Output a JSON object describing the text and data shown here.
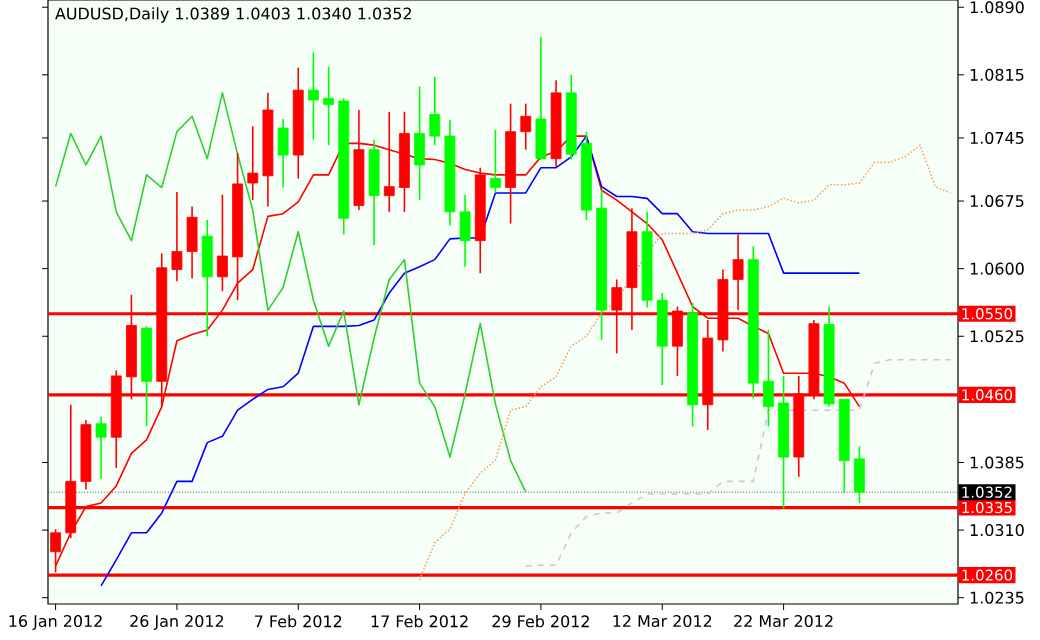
{
  "chart_data": {
    "type": "candlestick",
    "title": "AUDUSD,Daily  1.0389 1.0403 1.0340 1.0352",
    "categories": [
      "16 Jan 2012",
      null,
      null,
      null,
      null,
      null,
      null,
      null,
      "26 Jan 2012",
      null,
      null,
      null,
      null,
      null,
      null,
      null,
      "7 Feb 2012",
      null,
      null,
      null,
      null,
      null,
      null,
      null,
      "17 Feb 2012",
      null,
      null,
      null,
      null,
      null,
      null,
      null,
      "29 Feb 2012",
      null,
      null,
      null,
      null,
      null,
      null,
      null,
      "12 Mar 2012",
      null,
      null,
      null,
      null,
      null,
      null,
      null,
      "22 Mar 2012",
      null,
      null,
      null,
      null,
      null,
      null,
      null,
      null,
      null,
      null,
      null
    ],
    "ohlc": [
      [
        1.0286,
        1.0311,
        1.0263,
        1.0307
      ],
      [
        1.0307,
        1.0449,
        1.0301,
        1.0364
      ],
      [
        1.0364,
        1.0432,
        1.0355,
        1.0427
      ],
      [
        1.0428,
        1.0436,
        1.0367,
        1.0413
      ],
      [
        1.0413,
        1.0487,
        1.0379,
        1.0481
      ],
      [
        1.048,
        1.0571,
        1.0455,
        1.0537
      ],
      [
        1.0534,
        1.0536,
        1.0425,
        1.0475
      ],
      [
        1.0475,
        1.0617,
        1.0447,
        1.0601
      ],
      [
        1.0599,
        1.0685,
        1.0586,
        1.0619
      ],
      [
        1.0619,
        1.0669,
        1.0589,
        1.0657
      ],
      [
        1.0636,
        1.0654,
        1.0525,
        1.0591
      ],
      [
        1.0591,
        1.0682,
        1.0575,
        1.0614
      ],
      [
        1.0613,
        1.0728,
        1.0565,
        1.0694
      ],
      [
        1.0695,
        1.0758,
        1.0676,
        1.0706
      ],
      [
        1.0703,
        1.0795,
        1.0669,
        1.0776
      ],
      [
        1.0756,
        1.0766,
        1.069,
        1.0726
      ],
      [
        1.0726,
        1.0823,
        1.07,
        1.0798
      ],
      [
        1.0798,
        1.084,
        1.0743,
        1.0787
      ],
      [
        1.0789,
        1.0824,
        1.0737,
        1.0782
      ],
      [
        1.0786,
        1.0789,
        1.0638,
        1.0656
      ],
      [
        1.067,
        1.0776,
        1.0665,
        1.0732
      ],
      [
        1.0732,
        1.0743,
        1.0626,
        1.0681
      ],
      [
        1.0681,
        1.0774,
        1.0663,
        1.0691
      ],
      [
        1.069,
        1.0774,
        1.0663,
        1.075
      ],
      [
        1.075,
        1.0802,
        1.0676,
        1.0715
      ],
      [
        1.0771,
        1.0813,
        1.0737,
        1.0747
      ],
      [
        1.0747,
        1.0765,
        1.0648,
        1.0663
      ],
      [
        1.0663,
        1.0682,
        1.0602,
        1.0631
      ],
      [
        1.0631,
        1.0712,
        1.0595,
        1.0704
      ],
      [
        1.07,
        1.0754,
        1.0684,
        1.069
      ],
      [
        1.069,
        1.0783,
        1.065,
        1.0752
      ],
      [
        1.0752,
        1.0783,
        1.0732,
        1.0769
      ],
      [
        1.0766,
        1.0857,
        1.0721,
        1.0722
      ],
      [
        1.0722,
        1.0809,
        1.0713,
        1.0795
      ],
      [
        1.0795,
        1.0815,
        1.0721,
        1.0727
      ],
      [
        1.0739,
        1.0752,
        1.0654,
        1.0665
      ],
      [
        1.0667,
        1.0687,
        1.0521,
        1.0554
      ],
      [
        1.0554,
        1.0588,
        1.0506,
        1.0579
      ],
      [
        1.0579,
        1.0667,
        1.0532,
        1.0641
      ],
      [
        1.0641,
        1.0663,
        1.0557,
        1.0565
      ],
      [
        1.0565,
        1.0573,
        1.0471,
        1.0514
      ],
      [
        1.0514,
        1.0558,
        1.0481,
        1.0553
      ],
      [
        1.0551,
        1.0562,
        1.0425,
        1.0449
      ],
      [
        1.0449,
        1.0543,
        1.0421,
        1.0523
      ],
      [
        1.0521,
        1.0599,
        1.0508,
        1.0588
      ],
      [
        1.0588,
        1.0638,
        1.0554,
        1.061
      ],
      [
        1.061,
        1.0625,
        1.0456,
        1.0473
      ],
      [
        1.0475,
        1.0532,
        1.0425,
        1.0447
      ],
      [
        1.0451,
        1.0481,
        1.0334,
        1.0391
      ],
      [
        1.0391,
        1.0481,
        1.0369,
        1.0461
      ],
      [
        1.0461,
        1.0543,
        1.0455,
        1.0539
      ],
      [
        1.0538,
        1.0558,
        1.0447,
        1.045
      ],
      [
        1.0455,
        1.0455,
        1.0351,
        1.0387
      ],
      [
        1.0389,
        1.0403,
        1.034,
        1.0352
      ],
      null,
      null,
      null,
      null,
      null,
      null
    ],
    "colors": [
      "#ff0000",
      "#ff0000",
      "#ff0000",
      "#00ff00",
      "#ff0000",
      "#ff0000",
      "#00ff00",
      "#ff0000",
      "#ff0000",
      "#ff0000",
      "#00ff00",
      "#ff0000",
      "#ff0000",
      "#ff0000",
      "#ff0000",
      "#00ff00",
      "#ff0000",
      "#00ff00",
      "#00ff00",
      "#00ff00",
      "#ff0000",
      "#00ff00",
      "#ff0000",
      "#ff0000",
      "#00ff00",
      "#00ff00",
      "#00ff00",
      "#00ff00",
      "#ff0000",
      "#00ff00",
      "#ff0000",
      "#ff0000",
      "#00ff00",
      "#ff0000",
      "#00ff00",
      "#00ff00",
      "#00ff00",
      "#ff0000",
      "#ff0000",
      "#00ff00",
      "#00ff00",
      "#ff0000",
      "#00ff00",
      "#ff0000",
      "#ff0000",
      "#ff0000",
      "#00ff00",
      "#00ff00",
      "#00ff00",
      "#ff0000",
      "#ff0000",
      "#00ff00",
      "#00ff00",
      "#00ff00",
      null,
      null,
      null,
      null,
      null,
      null
    ],
    "series": [
      {
        "type": "line",
        "color": "#ff0000",
        "values": [
          1.027,
          1.0307,
          1.0336,
          1.034,
          1.0359,
          1.0395,
          1.041,
          1.0447,
          1.052,
          1.0527,
          1.0532,
          1.0554,
          1.0584,
          1.0599,
          1.0658,
          1.0661,
          1.0674,
          1.0704,
          1.0704,
          1.0739,
          1.0739,
          1.0737,
          1.0732,
          1.0727,
          1.0722,
          1.0721,
          1.0717,
          1.071,
          1.0706,
          1.0704,
          1.0704,
          1.0704,
          1.0724,
          1.073,
          1.0747,
          1.0747,
          1.0687,
          1.0676,
          1.0663,
          1.065,
          1.0632,
          1.0595,
          1.0558,
          1.0545,
          1.0545,
          1.0545,
          1.0536,
          1.0528,
          1.0484,
          1.0484,
          1.0484,
          1.048,
          1.0473,
          1.0447,
          null,
          null,
          null,
          null,
          null,
          null
        ]
      },
      {
        "type": "line",
        "color": "#0000ff",
        "values": [
          null,
          null,
          null,
          1.0248,
          1.0277,
          1.0307,
          1.0307,
          1.0329,
          1.0364,
          1.0364,
          1.0407,
          1.0414,
          1.0443,
          1.0455,
          1.0466,
          1.0469,
          1.0484,
          1.0536,
          1.0536,
          1.0536,
          1.0537,
          1.0543,
          1.0573,
          1.0595,
          1.0602,
          1.061,
          1.0633,
          1.0634,
          1.0634,
          1.0684,
          1.0684,
          1.0684,
          1.0712,
          1.0712,
          1.0724,
          1.0747,
          1.0691,
          1.068,
          1.068,
          1.0678,
          1.0661,
          1.0661,
          1.0641,
          1.0639,
          1.0639,
          1.0639,
          1.0639,
          1.0639,
          1.0595,
          1.0595,
          1.0595,
          1.0595,
          1.0595,
          1.0595,
          null,
          null,
          null,
          null,
          null,
          null
        ]
      },
      {
        "type": "line",
        "color": "#32cd32",
        "values": [
          1.0691,
          1.075,
          1.0715,
          1.0747,
          1.0663,
          1.0631,
          1.0704,
          1.069,
          1.0752,
          1.0769,
          1.0722,
          1.0795,
          1.0727,
          1.0665,
          1.0554,
          1.0579,
          1.0641,
          1.0565,
          1.0514,
          1.0553,
          1.0449,
          1.0523,
          1.0588,
          1.061,
          1.0473,
          1.0447,
          1.0391,
          1.0461,
          1.0539,
          1.045,
          1.0387,
          1.0352,
          null,
          null,
          null,
          null,
          null,
          null,
          null,
          null,
          null,
          null,
          null,
          null,
          null,
          null,
          null,
          null,
          null,
          null,
          null,
          null,
          null,
          null,
          null,
          null,
          null,
          null,
          null,
          null
        ]
      },
      {
        "type": "line",
        "color": "#f4a460",
        "line_style": "dotted",
        "values": [
          null,
          null,
          null,
          null,
          null,
          null,
          null,
          null,
          null,
          null,
          null,
          null,
          null,
          null,
          null,
          null,
          null,
          null,
          null,
          null,
          null,
          null,
          null,
          null,
          1.0255,
          1.0296,
          1.0311,
          1.0351,
          1.0373,
          1.0388,
          1.0443,
          1.0447,
          1.0469,
          1.048,
          1.0514,
          1.0525,
          1.0551,
          1.0565,
          1.0591,
          1.0617,
          1.0639,
          1.0639,
          1.0639,
          1.0643,
          1.0661,
          1.0665,
          1.0665,
          1.0669,
          1.0678,
          1.0673,
          1.0676,
          1.0693,
          1.0693,
          1.0695,
          1.0718,
          1.0718,
          1.0724,
          1.0737,
          1.0691,
          1.0684
        ]
      },
      {
        "type": "line",
        "color": "#d8bfd8",
        "line_style": "dashed",
        "values": [
          null,
          null,
          null,
          null,
          null,
          null,
          null,
          null,
          null,
          null,
          null,
          null,
          null,
          null,
          null,
          null,
          null,
          null,
          null,
          null,
          null,
          null,
          null,
          null,
          null,
          null,
          null,
          null,
          null,
          null,
          null,
          1.027,
          1.0271,
          1.0271,
          1.0307,
          1.0325,
          1.0329,
          1.0329,
          1.034,
          1.035,
          1.035,
          1.035,
          1.035,
          1.035,
          1.0364,
          1.0364,
          1.0364,
          1.0443,
          1.0443,
          1.0443,
          1.0443,
          1.0443,
          1.0443,
          1.0443,
          1.0495,
          1.0499,
          1.0499,
          1.0499,
          1.0499,
          1.0499
        ]
      }
    ],
    "ylim": [
      1.0228,
      1.0898
    ],
    "yticks": [
      {
        "value": 1.089,
        "label": "1.0890"
      },
      1.0815,
      1.0745,
      1.0675,
      {
        "value": 1.06,
        "label": "1.0600"
      },
      1.0525,
      1.0385,
      {
        "value": 1.031,
        "label": "1.0310"
      },
      1.0235
    ],
    "ref_lines": [
      {
        "axis": "y",
        "value": 1.055,
        "label": "1.0550",
        "color": "#ff0000"
      },
      {
        "axis": "y",
        "value": 1.046,
        "label": "1.0460",
        "color": "#ff0000"
      },
      {
        "axis": "y",
        "value": 1.0335,
        "label": "1.0335",
        "color": "#ff0000"
      },
      {
        "axis": "y",
        "value": 1.026,
        "label": "1.0260",
        "color": "#ff0000"
      },
      {
        "axis": "y",
        "value": 1.0352,
        "label": "1.0352",
        "color": "#000000",
        "line_style": "dotted"
      }
    ]
  }
}
